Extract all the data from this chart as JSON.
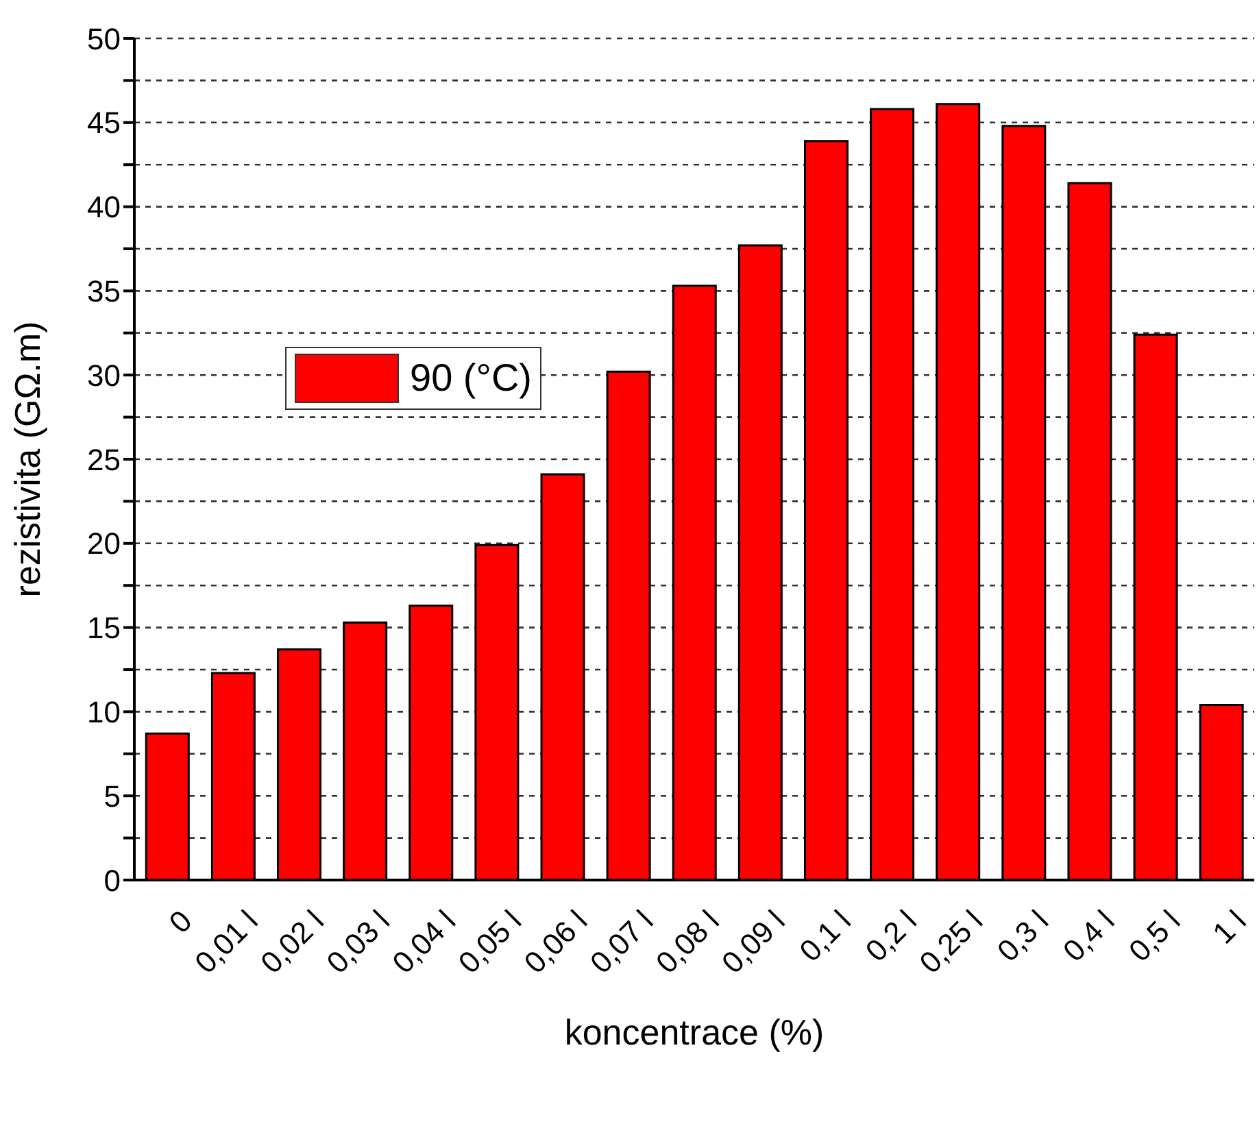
{
  "chart_data": {
    "type": "bar",
    "xlabel": "koncentrace (%)",
    "ylabel": "rezistivita (GΩ.m)",
    "categories": [
      "0",
      "0,01 l",
      "0,02 l",
      "0,03 l",
      "0,04 l",
      "0,05 l",
      "0,06 l",
      "0,07 l",
      "0,08 l",
      "0,09 l",
      "0,1 l",
      "0,2 l",
      "0,25 l",
      "0,3 l",
      "0,4 l",
      "0,5 l",
      "1 l"
    ],
    "series": [
      {
        "name": "90 (°C)",
        "color": "#ff0000",
        "values": [
          8.7,
          12.3,
          13.7,
          15.3,
          16.3,
          19.9,
          24.1,
          30.2,
          35.3,
          37.7,
          43.9,
          45.8,
          46.1,
          44.8,
          41.4,
          32.4,
          10.4
        ]
      }
    ],
    "ylim": [
      0,
      50
    ],
    "yticks": [
      0,
      {
        "value": 2.5,
        "label": null
      },
      5,
      {
        "value": 7.5,
        "label": null
      },
      10,
      {
        "value": 12.5,
        "label": null
      },
      15,
      {
        "value": 17.5,
        "label": null
      },
      20,
      {
        "value": 22.5,
        "label": null
      },
      25,
      {
        "value": 27.5,
        "label": null
      },
      30,
      {
        "value": 32.5,
        "label": null
      },
      35,
      {
        "value": 37.5,
        "label": null
      },
      40,
      {
        "value": 42.5,
        "label": null
      },
      45,
      {
        "value": 47.5,
        "label": null
      },
      50
    ],
    "grid": "y",
    "legend": "left"
  }
}
